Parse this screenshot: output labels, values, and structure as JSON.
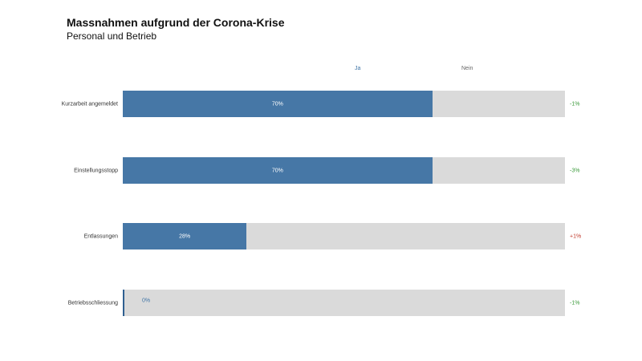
{
  "header": {
    "title": "Massnahmen aufgrund der Corona-Krise",
    "subtitle": "Personal und Betrieb"
  },
  "colors": {
    "ja": "#4677a6",
    "nein": "#dadada",
    "change_negative": "#3a9a3a",
    "change_positive": "#c0392b"
  },
  "chart_data": {
    "type": "bar",
    "orientation": "horizontal",
    "stacked": true,
    "title": "Massnahmen aufgrund der Corona-Krise",
    "subtitle": "Personal und Betrieb",
    "legend": [
      "Ja",
      "Nein"
    ],
    "legend_placement": "top",
    "categories": [
      "Kurzarbeit angemeldet",
      "Einstellungsstopp",
      "Entlassungen",
      "Betriebsschliessung"
    ],
    "series": [
      {
        "name": "Ja",
        "values": [
          70,
          70,
          28,
          0
        ],
        "labels": [
          "70%",
          "70%",
          "28%",
          "0%"
        ]
      },
      {
        "name": "Nein",
        "values": [
          30,
          30,
          72,
          100
        ]
      }
    ],
    "changes": [
      "-1%",
      "-3%",
      "+1%",
      "-1%"
    ],
    "xlim": [
      0,
      100
    ],
    "grid": false
  }
}
